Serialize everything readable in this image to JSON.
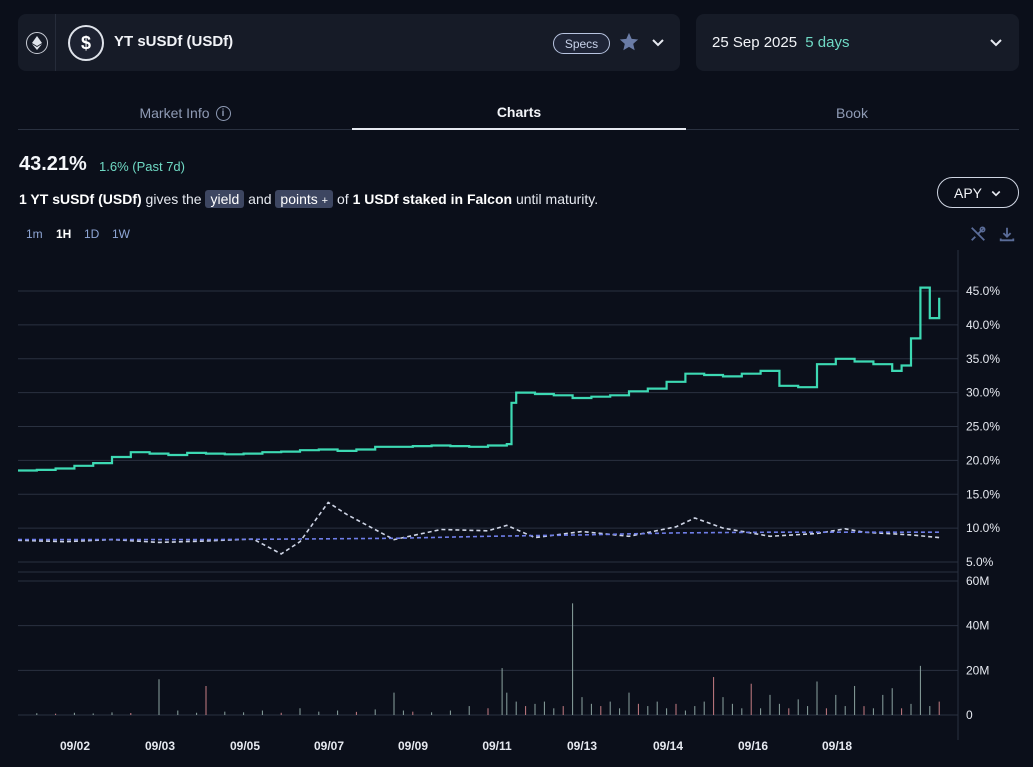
{
  "market": {
    "title": "YT sUSDf (USDf)",
    "specs_label": "Specs",
    "chain_icon": "ethereum-icon",
    "token_icon": "dollar-icon"
  },
  "maturity": {
    "date": "25 Sep 2025",
    "days": "5 days"
  },
  "tabs": [
    {
      "label": "Market Info",
      "icon": "info-icon"
    },
    {
      "label": "Charts"
    },
    {
      "label": "Book"
    }
  ],
  "summary": {
    "apy": "43.21%",
    "change": "1.6% (Past 7d)"
  },
  "description": {
    "subject": "1 YT sUSDf (USDf)",
    "gives_the": "gives the",
    "yield_chip": "yield",
    "and": "and",
    "points_chip": "points",
    "points_icon": "plus-icon",
    "of": "of",
    "staked": "1 USDf staked in Falcon",
    "tail": "until maturity."
  },
  "apy_selector": {
    "label": "APY"
  },
  "timeframes": [
    "1m",
    "1H",
    "1D",
    "1W"
  ],
  "active_timeframe": "1H",
  "colors": {
    "implied_apy": "#3dd9b3",
    "underlying_apy": "#cfd5e6",
    "underlying_avg": "#6f7ee8",
    "volume": "#8ba3a0"
  },
  "chart_data": [
    {
      "type": "line",
      "y_ticks": [
        "45.0%",
        "40.0%",
        "35.0%",
        "30.0%",
        "25.0%",
        "20.0%",
        "15.0%",
        "10.0%",
        "5.0%"
      ],
      "ylim": [
        5,
        45
      ],
      "x_ticks": [
        "09/02",
        "09/03",
        "09/05",
        "09/07",
        "09/09",
        "09/11",
        "09/13",
        "09/14",
        "09/16",
        "09/18"
      ],
      "xlim": [
        0,
        100
      ],
      "series": [
        {
          "style": "solid",
          "x": [
            0,
            2,
            4,
            6,
            8,
            10,
            12,
            14,
            16,
            18,
            20,
            22,
            24,
            26,
            28,
            30,
            32,
            34,
            36,
            38,
            40,
            42,
            44,
            46,
            48,
            50,
            52,
            52.5,
            53,
            55,
            57,
            59,
            61,
            63,
            65,
            67,
            69,
            71,
            73,
            75,
            77,
            79,
            81,
            83,
            85,
            87,
            89,
            91,
            93,
            94,
            95,
            96,
            97,
            98
          ],
          "y": [
            18.5,
            18.6,
            18.8,
            19.2,
            19.6,
            20.5,
            21.2,
            21.0,
            20.8,
            21.1,
            21.0,
            20.9,
            21.0,
            21.2,
            21.3,
            21.5,
            21.6,
            21.4,
            21.6,
            22.0,
            22.0,
            22.1,
            22.2,
            22.1,
            22.0,
            22.2,
            22.4,
            28.5,
            30.0,
            29.8,
            29.6,
            29.2,
            29.4,
            29.6,
            30.2,
            30.6,
            31.6,
            32.8,
            32.6,
            32.4,
            32.8,
            33.2,
            31.0,
            30.8,
            34.2,
            35.0,
            34.6,
            34.2,
            33.2,
            34.0,
            38.0,
            45.5,
            41.0,
            44.0
          ]
        },
        {
          "style": "dashed",
          "x": [
            0,
            5,
            10,
            15,
            20,
            25,
            28,
            30,
            33,
            35,
            40,
            45,
            50,
            52,
            55,
            60,
            65,
            70,
            72,
            75,
            80,
            85,
            88,
            90,
            95,
            98
          ],
          "y": [
            8.2,
            8.0,
            8.3,
            7.9,
            8.1,
            8.4,
            6.2,
            8.0,
            13.8,
            12.0,
            8.3,
            9.8,
            9.6,
            10.4,
            8.6,
            9.5,
            8.8,
            10.2,
            11.5,
            10.0,
            8.8,
            9.2,
            9.9,
            9.4,
            9.0,
            8.6
          ]
        },
        {
          "style": "dashed",
          "x": [
            0,
            10,
            20,
            30,
            40,
            50,
            60,
            70,
            80,
            90,
            98
          ],
          "y": [
            8.3,
            8.3,
            8.3,
            8.4,
            8.5,
            8.8,
            9.0,
            9.3,
            9.4,
            9.4,
            9.4
          ]
        }
      ]
    },
    {
      "type": "bar",
      "y_ticks": [
        "60M",
        "40M",
        "20M",
        "0"
      ],
      "ylim": [
        0,
        60
      ],
      "x_ticks": [
        "09/02",
        "09/03",
        "09/05",
        "09/07",
        "09/09",
        "09/11",
        "09/13",
        "09/14",
        "09/16",
        "09/18"
      ],
      "x": [
        2,
        4,
        6,
        8,
        10,
        12,
        15,
        17,
        19,
        20,
        22,
        24,
        26,
        28,
        30,
        32,
        34,
        36,
        38,
        40,
        41,
        42,
        44,
        46,
        48,
        50,
        51.5,
        52,
        53,
        54,
        55,
        56,
        57,
        58,
        59,
        60,
        61,
        62,
        63,
        64,
        65,
        66,
        67,
        68,
        69,
        70,
        71,
        72,
        73,
        74,
        75,
        76,
        77,
        78,
        79,
        80,
        81,
        82,
        83,
        84,
        85,
        86,
        87,
        88,
        89,
        90,
        91,
        92,
        93,
        94,
        95,
        96,
        97,
        98
      ],
      "values": [
        0.8,
        0.6,
        1,
        0.7,
        1.2,
        0.9,
        16,
        2,
        1,
        13,
        1.5,
        1.2,
        2,
        1,
        3,
        1.5,
        2,
        1.4,
        2.5,
        10,
        2,
        1.5,
        1.2,
        2,
        4,
        3,
        21,
        10,
        6,
        4,
        5,
        6,
        3,
        4,
        50,
        8,
        5,
        4,
        6,
        3,
        10,
        5,
        4,
        6,
        3,
        5,
        2,
        4,
        6,
        17,
        8,
        5,
        3,
        14,
        3,
        9,
        5,
        3,
        7,
        4,
        15,
        3,
        9,
        4,
        13,
        4,
        3,
        9,
        12,
        3,
        5,
        22,
        4,
        6
      ]
    }
  ]
}
